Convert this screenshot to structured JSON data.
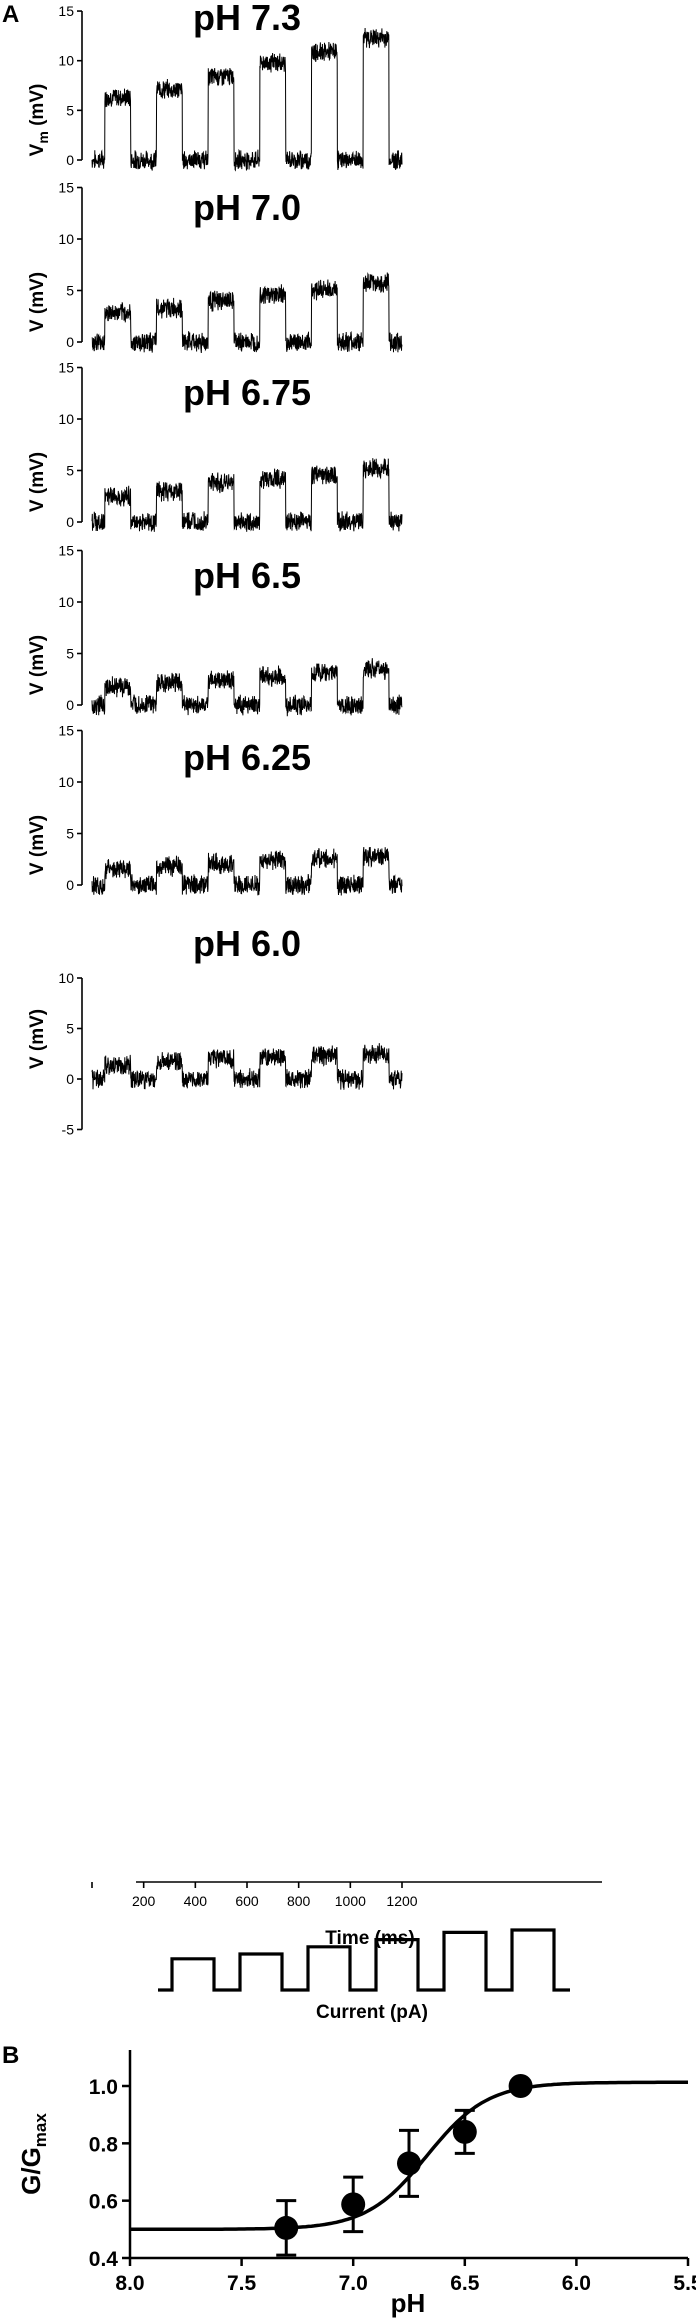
{
  "panel_a": {
    "letter": "A",
    "traces": [
      {
        "title": "pH 7.3",
        "ylabel_main": "V",
        "ylabel_sub": "m",
        "ylabel_unit": " (mV)",
        "ymin": 0,
        "ymax": 15,
        "yticks": [
          "15",
          "10",
          "5",
          "0"
        ],
        "pulse_amplitudes_mV": [
          6.3,
          7.1,
          8.4,
          9.8,
          10.9,
          12.3
        ]
      },
      {
        "title": "pH 7.0",
        "ylabel_main": "V",
        "ylabel_sub": "",
        "ylabel_unit": " (mV)",
        "ymin": 0,
        "ymax": 15,
        "yticks": [
          "15",
          "10",
          "5",
          "0"
        ],
        "pulse_amplitudes_mV": [
          2.8,
          3.3,
          4.0,
          4.6,
          5.1,
          5.7
        ]
      },
      {
        "title": "pH 6.75",
        "ylabel_main": "V",
        "ylabel_sub": "",
        "ylabel_unit": " (mV)",
        "ymin": 0,
        "ymax": 15,
        "yticks": [
          "15",
          "10",
          "5",
          "0"
        ],
        "pulse_amplitudes_mV": [
          2.5,
          3.0,
          3.8,
          4.2,
          4.6,
          5.2
        ]
      },
      {
        "title": "pH 6.5",
        "ylabel_main": "V",
        "ylabel_sub": "",
        "ylabel_unit": " (mV)",
        "ymin": 0,
        "ymax": 15,
        "yticks": [
          "15",
          "10",
          "5",
          "0"
        ],
        "pulse_amplitudes_mV": [
          1.8,
          2.1,
          2.4,
          2.8,
          3.2,
          3.5
        ]
      },
      {
        "title": "pH 6.25",
        "ylabel_main": "V",
        "ylabel_sub": "",
        "ylabel_unit": " (mV)",
        "ymin": 0,
        "ymax": 15,
        "yticks": [
          "15",
          "10",
          "5",
          "0"
        ],
        "pulse_amplitudes_mV": [
          1.5,
          1.8,
          2.1,
          2.4,
          2.6,
          2.8
        ]
      },
      {
        "title": "pH 6.0",
        "ylabel_main": "V",
        "ylabel_sub": "",
        "ylabel_unit": " (mV)",
        "ymin": -5,
        "ymax": 10,
        "yticks": [
          "10",
          "5",
          "0",
          "-5"
        ],
        "pulse_amplitudes_mV": [
          1.4,
          1.8,
          2.0,
          2.2,
          2.3,
          2.5
        ]
      }
    ],
    "time_axis": {
      "label": "Time (ms)",
      "min": 0,
      "max": 1200,
      "ticks": [
        "200",
        "400",
        "600",
        "800",
        "1000",
        "1200"
      ]
    },
    "pulse_timing_ms": {
      "period": 200,
      "on_start": 50,
      "on_end": 150
    },
    "current_protocol": {
      "label": "Current (pA)",
      "relative_steps": [
        0.52,
        0.6,
        0.72,
        0.84,
        0.96,
        1.0
      ]
    }
  },
  "chart_data": {
    "type": "scatter",
    "panel_letter": "B",
    "xlabel": "pH",
    "ylabel_main": "G/G",
    "ylabel_sub": "max",
    "xlim": [
      8.0,
      5.5
    ],
    "ylim": [
      0.4,
      1.1
    ],
    "x_reversed": true,
    "xticks": [
      "8.0",
      "7.5",
      "7.0",
      "6.5",
      "6.0",
      "5.5"
    ],
    "yticks": [
      "1.0",
      "0.8",
      "0.6",
      "0.4"
    ],
    "points": [
      {
        "x": 7.3,
        "y": 0.505,
        "err": 0.095
      },
      {
        "x": 7.0,
        "y": 0.587,
        "err": 0.095
      },
      {
        "x": 6.75,
        "y": 0.73,
        "err": 0.115
      },
      {
        "x": 6.5,
        "y": 0.84,
        "err": 0.075
      },
      {
        "x": 6.25,
        "y": 1.0,
        "err": 0
      }
    ],
    "fit": {
      "bottom": 0.5,
      "top": 1.013,
      "pH50": 6.67,
      "slope": 3.2
    }
  }
}
